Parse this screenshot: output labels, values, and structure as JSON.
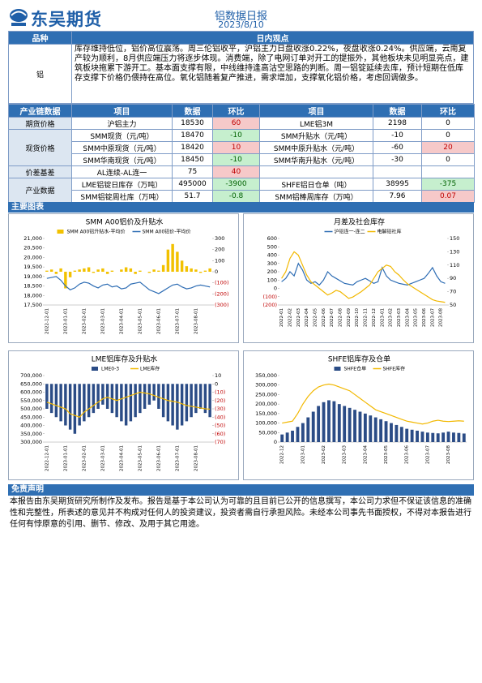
{
  "header": {
    "logo": "东吴期货",
    "title": "铝数据日报",
    "date": "2023/8/10"
  },
  "opinion": {
    "header": [
      "品种",
      "日内观点"
    ],
    "variety": "铝",
    "text": "库存维持低位，铝价高位震荡。周三伦铝收平，沪铝主力日盘收涨0.22%，夜盘收涨0.24%。供应端，云南复产较为顺利，8月供应端压力将逐步体现。消费端，除了电网订单对开工的提振外，其他板块未见明显亮点，建筑板块拖累下游开工。基本面支撑有限，中线维持逢高沽空思路的判断。周一铝锭延续去库，预计短期在低库存支撑下价格仍偎持在高位。氧化铝随着复产推进，需求增加，支撑氧化铝价格，考虑回调做多。"
  },
  "industry": {
    "header": [
      "产业链数据",
      "项目",
      "数据",
      "环比",
      "项目",
      "数据",
      "环比"
    ],
    "groups": [
      {
        "name": "期货价格",
        "rows": [
          {
            "left": [
              "沪铝主力",
              18530,
              60
            ],
            "right": [
              "LME铝3M",
              2198,
              0
            ]
          }
        ]
      },
      {
        "name": "现货价格",
        "rows": [
          {
            "left": [
              "SMM现货（元/吨）",
              18470,
              -10
            ],
            "right": [
              "SMM升贴水（元/吨）",
              -10,
              0
            ]
          },
          {
            "left": [
              "SMM中原现货（元/吨）",
              18420,
              10
            ],
            "right": [
              "SMM中原升贴水（元/吨）",
              -60,
              20
            ]
          },
          {
            "left": [
              "SMM华南现货（元/吨）",
              18450,
              -10
            ],
            "right": [
              "SMM华南升贴水（元/吨）",
              -30,
              0
            ]
          }
        ]
      },
      {
        "name": "价差基差",
        "rows": [
          {
            "left": [
              "AL连续-AL连一",
              75,
              40
            ]
          }
        ]
      },
      {
        "name": "产业数据",
        "rows": [
          {
            "left": [
              "LME铝锭日库存（万吨）",
              495000,
              -3900
            ],
            "right": [
              "SHFE铝日仓单（吨）",
              38995,
              -375
            ]
          },
          {
            "left": [
              "SMM铝锭周社库（万吨）",
              51.7,
              -0.8
            ],
            "right": [
              "SMM铝棒周库存（万吨）",
              7.96,
              0.07
            ]
          }
        ]
      }
    ]
  },
  "charts_section": "主要图表",
  "chart_data": [
    {
      "type": "combo",
      "title": "SMM A00铝价及升贴水",
      "categories": [
        "2022-12-01",
        null,
        null,
        null,
        "2023-01-01",
        null,
        null,
        null,
        "2023-02-01",
        null,
        null,
        null,
        "2023-03-01",
        null,
        null,
        null,
        "2023-04-01",
        null,
        null,
        null,
        "2023-05-01",
        null,
        null,
        null,
        "2023-06-01",
        null,
        null,
        null,
        "2023-07-01",
        null,
        null,
        null,
        "2023-08-01",
        null,
        null,
        null
      ],
      "ylim": [
        17500,
        21000
      ],
      "yticks": [
        {
          "value": 17500,
          "label": "17,500"
        },
        {
          "value": 18000,
          "label": "18,000"
        },
        {
          "value": 18500,
          "label": "18,500"
        },
        {
          "value": 19000,
          "label": "19,000"
        },
        {
          "value": 19500,
          "label": "19,500"
        },
        {
          "value": 20000,
          "label": "20,000"
        },
        {
          "value": 20500,
          "label": "20,500"
        },
        {
          "value": 21000,
          "label": "21,000"
        }
      ],
      "y2lim": [
        -300,
        300
      ],
      "y2ticks": [
        {
          "value": -300,
          "label": "(300)"
        },
        {
          "value": -200,
          "label": "(200)"
        },
        {
          "value": -100,
          "label": "(100)"
        },
        0,
        100,
        200,
        300
      ],
      "series": [
        {
          "name": "SMM A00铝升贴水-平均价",
          "kind": "bar",
          "axis": "y2",
          "color": "#f2c100",
          "values": [
            10,
            20,
            -20,
            30,
            -150,
            -50,
            10,
            20,
            30,
            40,
            -10,
            20,
            30,
            -20,
            10,
            0,
            20,
            40,
            30,
            -20,
            10,
            0,
            -10,
            20,
            10,
            60,
            200,
            250,
            180,
            100,
            50,
            30,
            20,
            -10,
            10,
            30
          ]
        },
        {
          "name": "SMM A00铝价-平均价",
          "kind": "line",
          "color": "#2e6db4",
          "values": [
            18900,
            18950,
            19000,
            18800,
            18500,
            18300,
            18400,
            18600,
            18700,
            18650,
            18500,
            18400,
            18550,
            18600,
            18450,
            18500,
            18350,
            18400,
            18600,
            18650,
            18700,
            18500,
            18300,
            18200,
            18100,
            18250,
            18400,
            18550,
            18600,
            18450,
            18350,
            18400,
            18500,
            18550,
            18500,
            18450
          ]
        }
      ]
    },
    {
      "type": "combo",
      "title": "月差及社会库存",
      "categories": [
        "2022-01",
        null,
        "2022-02",
        null,
        "2022-03",
        null,
        "2022-04",
        null,
        "2022-05",
        null,
        "2022-06",
        null,
        "2022-07",
        null,
        "2022-08",
        null,
        "2022-09",
        null,
        "2022-10",
        null,
        "2022-11",
        null,
        "2022-12",
        null,
        "2023-01",
        null,
        "2023-02",
        null,
        "2023-03",
        null,
        "2023-04",
        null,
        "2023-05",
        null,
        "2023-06",
        null,
        "2023-07",
        null,
        "2023-08",
        null
      ],
      "ylim": [
        -200,
        600
      ],
      "yticks": [
        {
          "value": -200,
          "label": "(200)"
        },
        {
          "value": -100,
          "label": "(100)"
        },
        0,
        100,
        200,
        300,
        400,
        500,
        600
      ],
      "y2lim": [
        50,
        150
      ],
      "y2ticks": [
        50,
        70,
        90,
        110,
        130,
        150
      ],
      "series": [
        {
          "name": "沪铝连一-连二",
          "kind": "line",
          "color": "#2e6db4",
          "values": [
            80,
            120,
            200,
            150,
            300,
            220,
            100,
            60,
            80,
            40,
            100,
            200,
            150,
            120,
            90,
            60,
            50,
            40,
            80,
            100,
            120,
            90,
            60,
            80,
            250,
            150,
            100,
            80,
            60,
            50,
            40,
            60,
            80,
            100,
            120,
            180,
            250,
            150,
            80,
            60
          ]
        },
        {
          "name": "电解铝社库",
          "kind": "line",
          "axis": "y2",
          "color": "#f2b800",
          "values": [
            90,
            100,
            120,
            130,
            125,
            110,
            95,
            85,
            80,
            75,
            70,
            65,
            68,
            72,
            70,
            65,
            60,
            62,
            66,
            70,
            75,
            80,
            90,
            100,
            105,
            110,
            108,
            100,
            95,
            88,
            82,
            78,
            74,
            70,
            66,
            62,
            58,
            56,
            55,
            54
          ]
        }
      ]
    },
    {
      "type": "combo",
      "title": "LME铝库存及升贴水",
      "categories": [
        "2022-12-01",
        null,
        null,
        null,
        "2023-01-01",
        null,
        null,
        null,
        "2023-02-01",
        null,
        null,
        null,
        "2023-03-01",
        null,
        null,
        null,
        "2023-04-01",
        null,
        null,
        null,
        "2023-05-01",
        null,
        null,
        null,
        "2023-06-01",
        null,
        null,
        null,
        "2023-07-01",
        null,
        null,
        null,
        "2023-08-01",
        null,
        null,
        null
      ],
      "ylim": [
        300000,
        700000
      ],
      "yticks": [
        {
          "value": 300000,
          "label": "300,000"
        },
        {
          "value": 350000,
          "label": "350,000"
        },
        {
          "value": 400000,
          "label": "400,000"
        },
        {
          "value": 450000,
          "label": "450,000"
        },
        {
          "value": 500000,
          "label": "500,000"
        },
        {
          "value": 550000,
          "label": "550,000"
        },
        {
          "value": 600000,
          "label": "600,000"
        },
        {
          "value": 650000,
          "label": "650,000"
        },
        {
          "value": 700000,
          "label": "700,000"
        }
      ],
      "y2lim": [
        -70,
        10
      ],
      "y2ticks": [
        {
          "value": -70,
          "label": "(70)"
        },
        {
          "value": -60,
          "label": "(60)"
        },
        {
          "value": -50,
          "label": "(50)"
        },
        {
          "value": -40,
          "label": "(40)"
        },
        {
          "value": -30,
          "label": "(30)"
        },
        {
          "value": -20,
          "label": "(20)"
        },
        {
          "value": -10,
          "label": "(10)"
        },
        0,
        10
      ],
      "series": [
        {
          "name": "LME0-3",
          "kind": "bar",
          "axis": "y2",
          "color": "#2b4c86",
          "values": [
            -30,
            -35,
            -40,
            -45,
            -50,
            -55,
            -60,
            -50,
            -45,
            -40,
            -35,
            -30,
            -25,
            -30,
            -35,
            -40,
            -45,
            -50,
            -45,
            -40,
            -35,
            -30,
            -25,
            -20,
            -30,
            -40,
            -45,
            -50,
            -55,
            -50,
            -45,
            -40,
            -35,
            -30,
            -35,
            -40
          ]
        },
        {
          "name": "LME库存",
          "kind": "line",
          "color": "#f2b800",
          "values": [
            540000,
            530000,
            520000,
            510000,
            500000,
            470000,
            460000,
            450000,
            480000,
            500000,
            520000,
            540000,
            560000,
            570000,
            560000,
            550000,
            560000,
            570000,
            580000,
            590000,
            600000,
            595000,
            590000,
            580000,
            570000,
            560000,
            550000,
            545000,
            540000,
            530000,
            520000,
            515000,
            510000,
            505000,
            500000,
            498000
          ]
        }
      ]
    },
    {
      "type": "combo",
      "title": "SHFE铝库存及仓单",
      "categories": [
        "2022-12",
        null,
        null,
        null,
        "2023-01",
        null,
        null,
        null,
        "2023-02",
        null,
        null,
        null,
        "2023-03",
        null,
        null,
        null,
        "2023-04",
        null,
        null,
        null,
        "2023-05",
        null,
        null,
        null,
        "2023-06",
        null,
        null,
        null,
        "2023-07",
        null,
        null,
        null,
        "2023-08",
        null,
        null,
        null
      ],
      "ylim": [
        0,
        350000
      ],
      "yticks": [
        0,
        {
          "value": 50000,
          "label": "50,000"
        },
        {
          "value": 100000,
          "label": "100,000"
        },
        {
          "value": 150000,
          "label": "150,000"
        },
        {
          "value": 200000,
          "label": "200,000"
        },
        {
          "value": 250000,
          "label": "250,000"
        },
        {
          "value": 300000,
          "label": "300,000"
        },
        {
          "value": 350000,
          "label": "350,000"
        }
      ],
      "series": [
        {
          "name": "SHFE仓单",
          "kind": "bar",
          "color": "#2b4c86",
          "values": [
            40000,
            50000,
            60000,
            80000,
            100000,
            130000,
            160000,
            190000,
            210000,
            220000,
            215000,
            200000,
            190000,
            180000,
            170000,
            160000,
            150000,
            140000,
            130000,
            120000,
            110000,
            100000,
            90000,
            80000,
            70000,
            65000,
            60000,
            55000,
            50000,
            48000,
            46000,
            50000,
            55000,
            50000,
            48000,
            45000
          ]
        },
        {
          "name": "SHFE库存",
          "kind": "line",
          "color": "#f2b800",
          "values": [
            100000,
            105000,
            110000,
            150000,
            200000,
            240000,
            270000,
            290000,
            300000,
            305000,
            300000,
            290000,
            280000,
            270000,
            250000,
            230000,
            210000,
            190000,
            170000,
            160000,
            150000,
            140000,
            130000,
            120000,
            110000,
            105000,
            100000,
            95000,
            100000,
            110000,
            115000,
            110000,
            108000,
            110000,
            112000,
            110000
          ]
        }
      ]
    }
  ],
  "disclaimer": {
    "title": "免责声明",
    "text": "本报告由东吴期货研究所制作及发布。报告是基于本公司认为可靠的且目前已公开的信息撰写，本公司力求但不保证该信息的准确性和完整性，所表述的意见并不构成对任何人的投资建议，投资者需自行承担风险。未经本公司事先书面授权，不得对本报告进行任何有悖原意的引用、删节、修改、及用于其它用途。"
  }
}
